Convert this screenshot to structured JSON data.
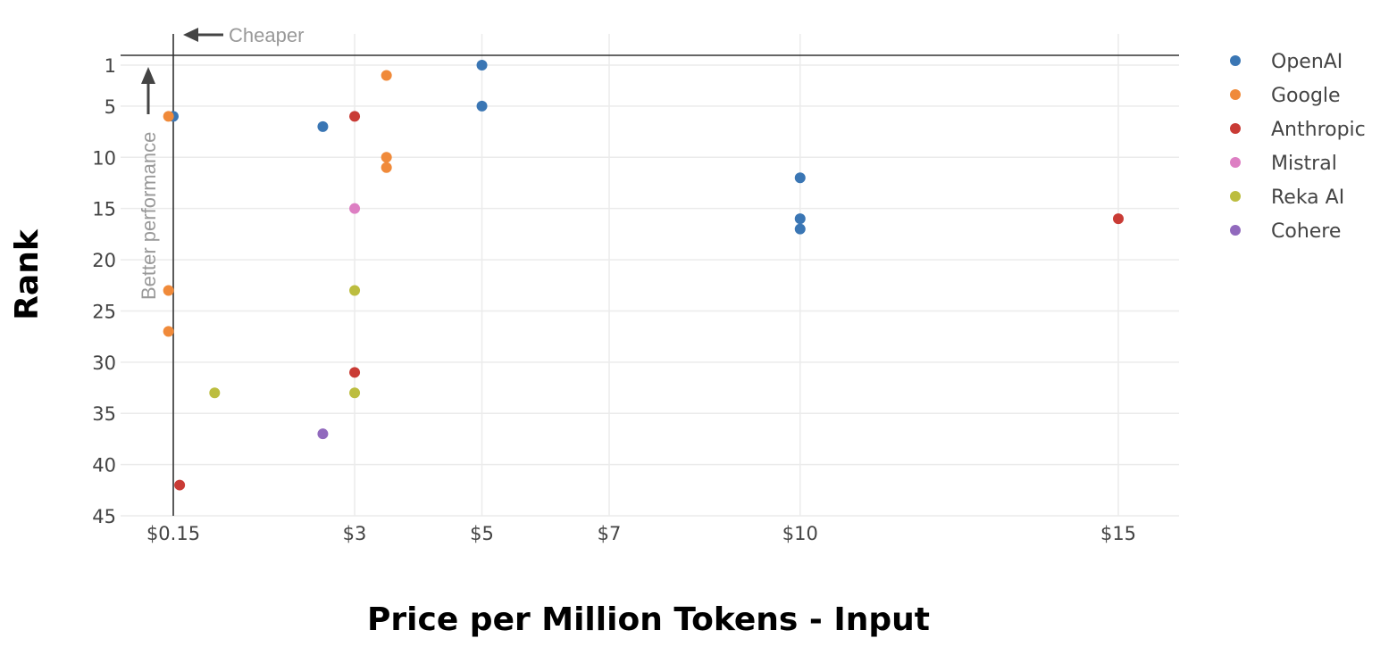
{
  "chart_data": {
    "type": "scatter",
    "xlabel": "Price per Million Tokens - Input",
    "ylabel": "Rank",
    "xlim": [
      -0.1,
      15.95
    ],
    "ylim": [
      45,
      -0.1
    ],
    "x_ticks": [
      0.15,
      3,
      5,
      7,
      10,
      15
    ],
    "x_tick_labels": [
      "$0.15",
      "$3",
      "$5",
      "$7",
      "$10",
      "$15"
    ],
    "y_ticks": [
      1,
      5,
      10,
      15,
      20,
      25,
      30,
      35,
      40,
      45
    ],
    "y_tick_labels": [
      "1",
      "5",
      "10",
      "15",
      "20",
      "25",
      "30",
      "35",
      "40",
      "45"
    ],
    "grid": true,
    "legend_position": "top-right",
    "series": [
      {
        "name": "OpenAI",
        "color": "#3a76b4",
        "points": [
          {
            "x": 5,
            "y": 1
          },
          {
            "x": 5,
            "y": 5
          },
          {
            "x": 0.15,
            "y": 6
          },
          {
            "x": 2.5,
            "y": 7
          },
          {
            "x": 10,
            "y": 12
          },
          {
            "x": 10,
            "y": 16
          },
          {
            "x": 10,
            "y": 17
          }
        ]
      },
      {
        "name": "Google",
        "color": "#f08a3a",
        "points": [
          {
            "x": 3.5,
            "y": 2
          },
          {
            "x": 0.075,
            "y": 6
          },
          {
            "x": 3.5,
            "y": 10
          },
          {
            "x": 3.5,
            "y": 11
          },
          {
            "x": 0.075,
            "y": 23
          },
          {
            "x": 0.075,
            "y": 27
          }
        ]
      },
      {
        "name": "Anthropic",
        "color": "#c93b35",
        "points": [
          {
            "x": 3,
            "y": 6
          },
          {
            "x": 15,
            "y": 16
          },
          {
            "x": 3,
            "y": 31
          },
          {
            "x": 0.25,
            "y": 42
          }
        ]
      },
      {
        "name": "Mistral",
        "color": "#dd7fc3",
        "points": [
          {
            "x": 3,
            "y": 15
          }
        ]
      },
      {
        "name": "Reka AI",
        "color": "#bcbd3f",
        "points": [
          {
            "x": 3,
            "y": 23
          },
          {
            "x": 0.8,
            "y": 33
          },
          {
            "x": 3,
            "y": 33
          }
        ]
      },
      {
        "name": "Cohere",
        "color": "#9169bd",
        "points": [
          {
            "x": 2.5,
            "y": 37
          }
        ]
      }
    ],
    "annotations": {
      "x_arrow_label": "Cheaper",
      "y_arrow_label": "Better performance"
    }
  }
}
